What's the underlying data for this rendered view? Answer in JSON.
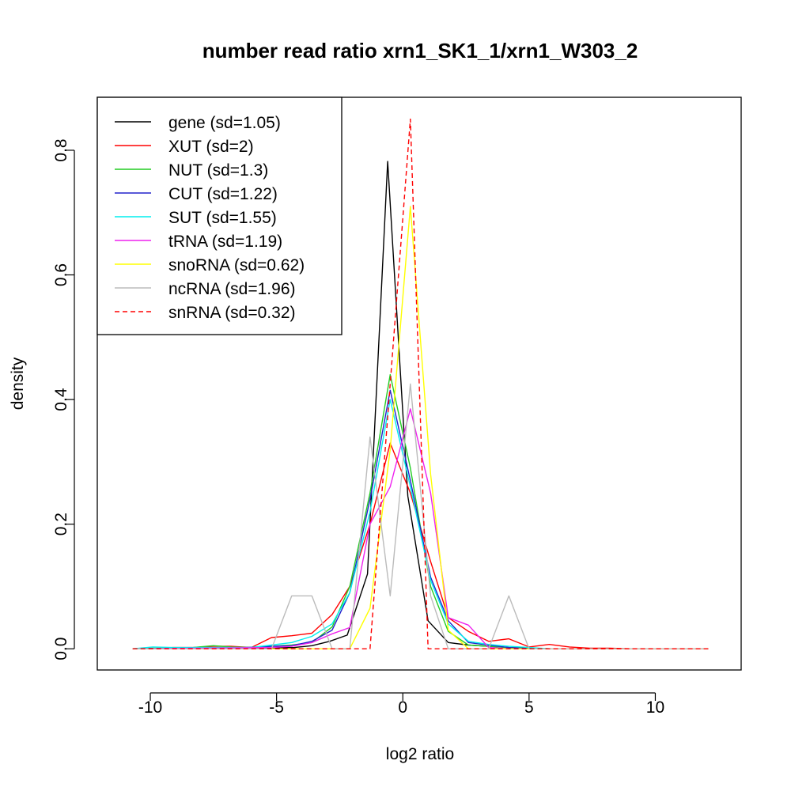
{
  "chart_data": {
    "type": "line",
    "title": "number read ratio xrn1_SK1_1/xrn1_W303_2",
    "xlabel": "log2 ratio",
    "ylabel": "density",
    "xlim": [
      -12.1,
      13.4
    ],
    "ylim": [
      -0.034,
      0.885
    ],
    "xticks": [
      -10,
      -5,
      0,
      5,
      10
    ],
    "xtick_labels": [
      "-10",
      "-5",
      "0",
      "5",
      "10"
    ],
    "yticks": [
      0.0,
      0.2,
      0.4,
      0.6,
      0.8
    ],
    "ytick_labels": [
      "0.0",
      "0.2",
      "0.4",
      "0.6",
      "0.8"
    ],
    "grid": false,
    "legend_position": "top-left",
    "series": [
      {
        "name": "gene (sd=1.05)",
        "color": "#000000",
        "dash": false,
        "x": [
          -10.7,
          -6.1,
          -4.3,
          -3.6,
          -2.9,
          -2.2,
          -1.4,
          -0.6,
          0.2,
          1.0,
          1.8,
          2.6,
          3.4,
          4.2,
          5.0,
          5.8,
          12.1
        ],
        "y": [
          0.0,
          0.001,
          0.002,
          0.005,
          0.012,
          0.022,
          0.12,
          0.782,
          0.245,
          0.045,
          0.01,
          0.006,
          0.004,
          0.002,
          0.001,
          0.0,
          0.0
        ]
      },
      {
        "name": "XUT (sd=2)",
        "color": "#ff0000",
        "dash": false,
        "x": [
          -10.7,
          -9.9,
          -9.1,
          -8.3,
          -7.5,
          -6.8,
          -6.0,
          -5.2,
          -4.4,
          -3.6,
          -2.8,
          -2.1,
          -1.3,
          -0.5,
          0.3,
          1.1,
          1.8,
          2.6,
          3.4,
          4.2,
          5.0,
          5.8,
          6.6,
          7.4,
          8.2,
          9.0,
          9.8,
          10.6,
          11.4,
          12.1
        ],
        "y": [
          0.0,
          0.0,
          0.002,
          0.002,
          0.004,
          0.004,
          0.002,
          0.018,
          0.021,
          0.025,
          0.055,
          0.1,
          0.2,
          0.33,
          0.25,
          0.14,
          0.05,
          0.028,
          0.012,
          0.016,
          0.003,
          0.007,
          0.003,
          0.001,
          0.001,
          0.0,
          0.0,
          0.0,
          0.0,
          0.0
        ]
      },
      {
        "name": "NUT (sd=1.3)",
        "color": "#22cc22",
        "dash": false,
        "x": [
          -10.7,
          -9.9,
          -9.1,
          -8.3,
          -7.5,
          -6.8,
          -6.0,
          -5.2,
          -4.4,
          -3.6,
          -2.8,
          -2.1,
          -1.3,
          -0.5,
          0.3,
          1.1,
          1.8,
          2.6,
          3.4,
          4.2,
          5.0
        ],
        "y": [
          0.0,
          0.001,
          0.001,
          0.002,
          0.005,
          0.003,
          0.002,
          0.004,
          0.006,
          0.01,
          0.035,
          0.1,
          0.25,
          0.44,
          0.29,
          0.1,
          0.028,
          0.006,
          0.004,
          0.002,
          0.0
        ]
      },
      {
        "name": "CUT (sd=1.22)",
        "color": "#2222cc",
        "dash": false,
        "x": [
          -10.7,
          -8.3,
          -6.8,
          -5.2,
          -4.4,
          -3.6,
          -2.8,
          -2.1,
          -1.3,
          -0.5,
          0.3,
          1.1,
          1.8,
          2.6,
          3.4,
          4.2,
          5.0
        ],
        "y": [
          0.0,
          0.001,
          0.001,
          0.004,
          0.005,
          0.012,
          0.03,
          0.09,
          0.24,
          0.415,
          0.27,
          0.115,
          0.045,
          0.01,
          0.006,
          0.002,
          0.0
        ]
      },
      {
        "name": "SUT (sd=1.55)",
        "color": "#00eeee",
        "dash": false,
        "x": [
          -10.7,
          -9.9,
          -9.1,
          -8.3,
          -7.5,
          -6.8,
          -6.0,
          -5.2,
          -4.4,
          -3.6,
          -2.8,
          -2.1,
          -1.3,
          -0.5,
          0.3,
          1.1,
          1.8,
          2.6,
          3.4,
          4.2,
          5.0,
          5.8
        ],
        "y": [
          0.0,
          0.003,
          0.002,
          0.002,
          0.002,
          0.002,
          0.002,
          0.006,
          0.01,
          0.02,
          0.04,
          0.09,
          0.22,
          0.4,
          0.26,
          0.11,
          0.04,
          0.012,
          0.007,
          0.004,
          0.002,
          0.0
        ]
      },
      {
        "name": "tRNA (sd=1.19)",
        "color": "#ee22ee",
        "dash": false,
        "x": [
          -10.7,
          -5.2,
          -4.4,
          -3.6,
          -2.8,
          -2.1,
          -1.3,
          -0.5,
          0.3,
          1.1,
          1.8,
          2.6,
          3.4,
          4.2
        ],
        "y": [
          0.0,
          0.002,
          0.004,
          0.01,
          0.024,
          0.034,
          0.2,
          0.26,
          0.385,
          0.25,
          0.05,
          0.038,
          0.002,
          0.0
        ]
      },
      {
        "name": "snoRNA (sd=0.62)",
        "color": "#ffff00",
        "dash": false,
        "x": [
          -10.7,
          -2.1,
          -1.3,
          -0.5,
          0.3,
          1.1,
          1.8,
          2.6,
          12.1
        ],
        "y": [
          0.0,
          0.0,
          0.065,
          0.32,
          0.71,
          0.28,
          0.03,
          0.0,
          0.0
        ]
      },
      {
        "name": "ncRNA (sd=1.96)",
        "color": "#bbbbbb",
        "dash": false,
        "x": [
          -10.7,
          -5.2,
          -4.4,
          -3.6,
          -2.8,
          -2.1,
          -1.3,
          -0.5,
          0.3,
          1.1,
          1.8,
          2.6,
          3.4,
          4.2,
          5.0,
          12.1
        ],
        "y": [
          0.0,
          0.0,
          0.085,
          0.085,
          0.0,
          0.0,
          0.34,
          0.085,
          0.425,
          0.085,
          0.0,
          0.0,
          0.0,
          0.085,
          0.0,
          0.0
        ]
      },
      {
        "name": "snRNA (sd=0.32)",
        "color": "#ff0000",
        "dash": true,
        "x": [
          -10.7,
          -1.3,
          0.3,
          1.0,
          12.1
        ],
        "y": [
          0.0,
          0.0,
          0.85,
          0.0,
          0.0
        ]
      }
    ]
  }
}
